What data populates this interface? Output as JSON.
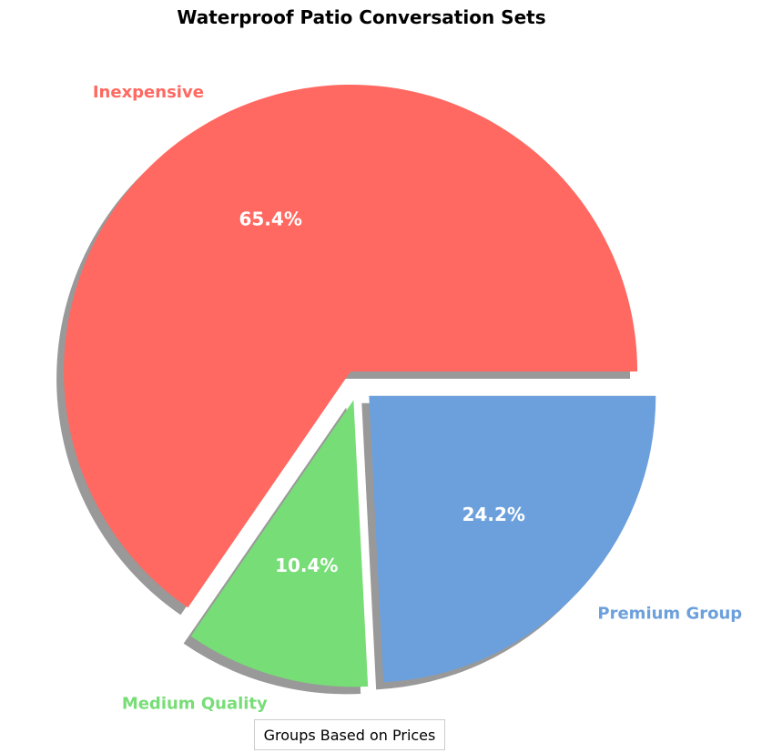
{
  "chart_data": {
    "type": "pie",
    "title": "Waterproof Patio Conversation Sets",
    "start_angle_deg": 0,
    "direction": "counterclockwise",
    "shadow": true,
    "legend_title": "Groups Based on Prices",
    "legend_placement": "bottom-center",
    "slices": [
      {
        "label": "Inexpensive",
        "value": 65.4,
        "pct_label": "65.4%",
        "color": "#ff6961",
        "explode": 0.05
      },
      {
        "label": "Medium Quality",
        "value": 10.4,
        "pct_label": "10.4%",
        "color": "#77dd77",
        "explode": 0.05
      },
      {
        "label": "Premium Group",
        "value": 24.2,
        "pct_label": "24.2%",
        "color": "#6ca0dc",
        "explode": 0.05
      }
    ]
  }
}
